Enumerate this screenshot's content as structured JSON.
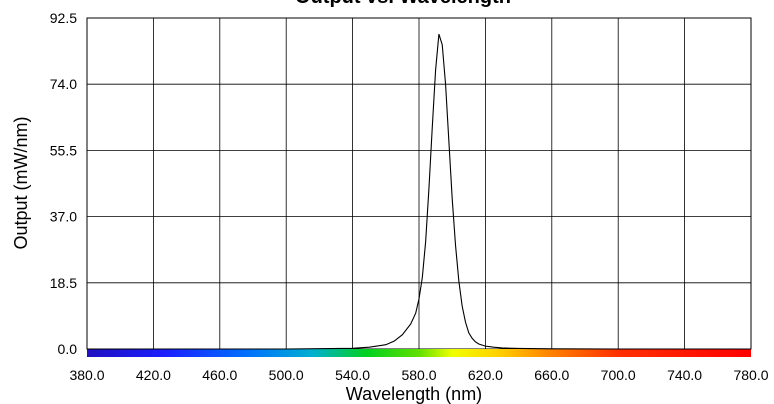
{
  "chart_data": {
    "type": "line",
    "title": "Output vs. Wavelength",
    "xlabel": "Wavelength (nm)",
    "ylabel": "Output (mW/nm)",
    "xlim": [
      380,
      780
    ],
    "ylim": [
      0,
      92.5
    ],
    "x_ticks": [
      "380.0",
      "420.0",
      "460.0",
      "500.0",
      "540.0",
      "580.0",
      "620.0",
      "660.0",
      "700.0",
      "740.0",
      "780.0"
    ],
    "y_ticks": [
      "0.0",
      "18.5",
      "37.0",
      "55.5",
      "74.0",
      "92.5"
    ],
    "grid": true,
    "legend": "none",
    "spectrum_bar": true,
    "series": [
      {
        "x": [
          380,
          500,
          540,
          550,
          560,
          565,
          570,
          575,
          578,
          580,
          582,
          584,
          586,
          588,
          590,
          592,
          594,
          596,
          598,
          600,
          602,
          604,
          606,
          608,
          610,
          612,
          614,
          616,
          620,
          625,
          630,
          640,
          660,
          700,
          780
        ],
        "values": [
          0,
          0,
          0.2,
          0.5,
          1.2,
          2.2,
          4,
          7,
          10,
          14,
          20,
          30,
          45,
          62,
          78,
          88,
          85,
          74,
          58,
          42,
          29,
          19,
          12,
          7.5,
          4.5,
          3,
          2,
          1.4,
          0.8,
          0.5,
          0.3,
          0.15,
          0.05,
          0,
          0
        ],
        "color": "#000000"
      }
    ]
  }
}
